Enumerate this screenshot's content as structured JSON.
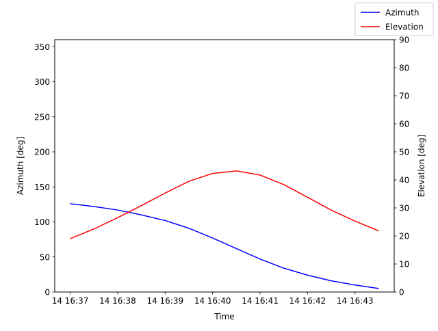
{
  "chart_data": {
    "type": "line",
    "x": [
      "14 16:37:00",
      "14 16:37:30",
      "14 16:38:00",
      "14 16:38:30",
      "14 16:39:00",
      "14 16:39:30",
      "14 16:40:00",
      "14 16:40:30",
      "14 16:41:00",
      "14 16:41:30",
      "14 16:42:00",
      "14 16:42:30",
      "14 16:43:00",
      "14 16:43:30"
    ],
    "x_ticks": [
      "14 16:37",
      "14 16:38",
      "14 16:39",
      "14 16:40",
      "14 16:41",
      "14 16:42",
      "14 16:43"
    ],
    "xlabel": "Time",
    "series": [
      {
        "name": "Azimuth",
        "axis": "left",
        "color": "#0000ff",
        "values": [
          126,
          122,
          117,
          110,
          102,
          91,
          77,
          62,
          47,
          34,
          24,
          16,
          10,
          5
        ]
      },
      {
        "name": "Elevation",
        "axis": "right",
        "color": "#ff0000",
        "values": [
          19,
          22.5,
          26.5,
          30.8,
          35.3,
          39.5,
          42.3,
          43.2,
          41.7,
          38.3,
          33.8,
          29.2,
          25.3,
          21.8
        ]
      }
    ],
    "y_left": {
      "label": "Azimuth [deg]",
      "lim": [
        0,
        360
      ],
      "ticks": [
        "0",
        "50",
        "100",
        "150",
        "200",
        "250",
        "300",
        "350"
      ]
    },
    "y_right": {
      "label": "Elevation [deg]",
      "lim": [
        0,
        90
      ],
      "ticks": [
        "0",
        "10",
        "20",
        "30",
        "40",
        "50",
        "60",
        "70",
        "80",
        "90"
      ]
    },
    "legend": {
      "placement": "top-right",
      "entries": [
        "Azimuth",
        "Elevation"
      ]
    },
    "grid": false
  }
}
